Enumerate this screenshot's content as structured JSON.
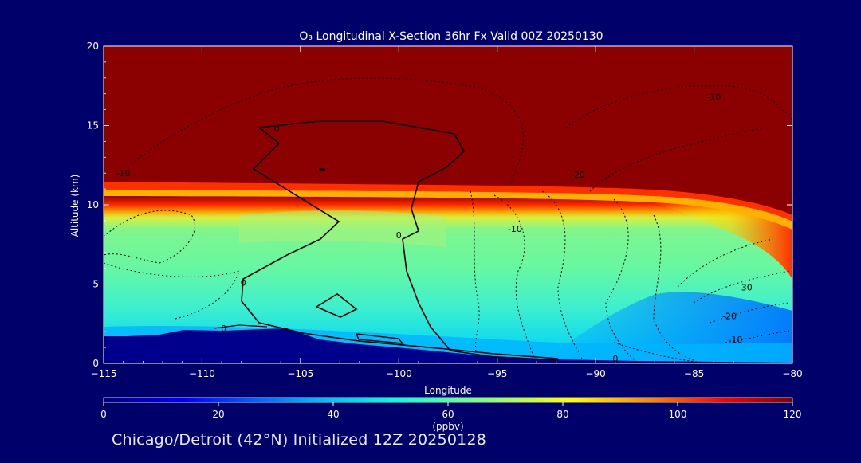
{
  "chart_data": {
    "type": "heatmap",
    "title": "O₃ Longitudinal X-Section 36hr  Fx Valid 00Z 20250130",
    "xlabel": "Longitude",
    "ylabel": "Altitude (km)",
    "xlim": [
      -115,
      -80
    ],
    "ylim": [
      0,
      20
    ],
    "x_ticks": [
      -115,
      -110,
      -105,
      -100,
      -95,
      -90,
      -85,
      -80
    ],
    "x_tick_labels": [
      "−115",
      "−110",
      "−105",
      "−100",
      "−95",
      "−90",
      "−85",
      "−80"
    ],
    "y_ticks": [
      0,
      5,
      10,
      15,
      20
    ],
    "y_tick_labels": [
      "0",
      "5",
      "10",
      "15",
      "20"
    ],
    "colorbar": {
      "label": "(ppbv)",
      "min": 0,
      "max": 120,
      "ticks": [
        0,
        20,
        40,
        60,
        80,
        100,
        120
      ],
      "tick_labels": [
        "0",
        "20",
        "40",
        "60",
        "80",
        "100",
        "120"
      ]
    },
    "contour_labels": [
      {
        "text": "0",
        "lon": -106.2,
        "alt": 14.8
      },
      {
        "text": "-10",
        "lon": -114.0,
        "alt": 12.0
      },
      {
        "text": "-10",
        "lon": -84.0,
        "alt": 16.8
      },
      {
        "text": "-20",
        "lon": -90.9,
        "alt": 11.9
      },
      {
        "text": "0",
        "lon": -100.0,
        "alt": 8.1
      },
      {
        "text": "-10",
        "lon": -94.1,
        "alt": 8.5
      },
      {
        "text": "0",
        "lon": -107.9,
        "alt": 5.1
      },
      {
        "text": "0",
        "lon": -108.9,
        "alt": 2.2
      },
      {
        "text": "-30",
        "lon": -82.4,
        "alt": 4.8
      },
      {
        "text": "-20",
        "lon": -83.2,
        "alt": 3.0
      },
      {
        "text": "-10",
        "lon": -82.9,
        "alt": 1.5
      },
      {
        "text": "0",
        "lon": -89.0,
        "alt": 0.3
      }
    ]
  },
  "footer": {
    "title": "Chicago/Detroit (42°N) Initialized 12Z 20250128"
  }
}
